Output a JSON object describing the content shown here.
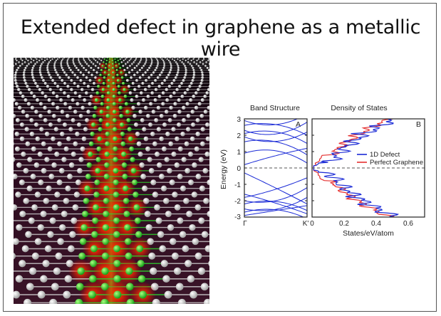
{
  "slide": {
    "title": "Extended defect in graphene as a metallic wire"
  },
  "image": {
    "description_icon": "graphene-defect-render",
    "colors": {
      "background": "#2a0c1c",
      "atom": "#eeeeee",
      "defect_atom": "#22cc22",
      "glow": "#ff2a00"
    }
  },
  "chart_data": [
    {
      "type": "line",
      "title": "Band Structure",
      "panel_label": "A",
      "ylabel": "Energy (eV)",
      "ylim": [
        -3,
        3
      ],
      "yticks": [
        "3",
        "2",
        "1",
        "0",
        "-1",
        "-2",
        "-3"
      ],
      "xticks": [
        "Γ",
        "K'"
      ],
      "fermi_level": 0,
      "series_color": "#1a2ad6"
    },
    {
      "type": "line",
      "title": "Density of States",
      "panel_label": "B",
      "xlabel": "States/eV/atom",
      "xlim": [
        0,
        0.7
      ],
      "xticks": [
        "0",
        "0.2",
        "0.4",
        "0.6"
      ],
      "ylim": [
        -3,
        3
      ],
      "series": [
        {
          "name": "1D Defect",
          "color": "#1a2ad6"
        },
        {
          "name": "Perfect Graphene",
          "color": "#e53030"
        }
      ]
    }
  ]
}
